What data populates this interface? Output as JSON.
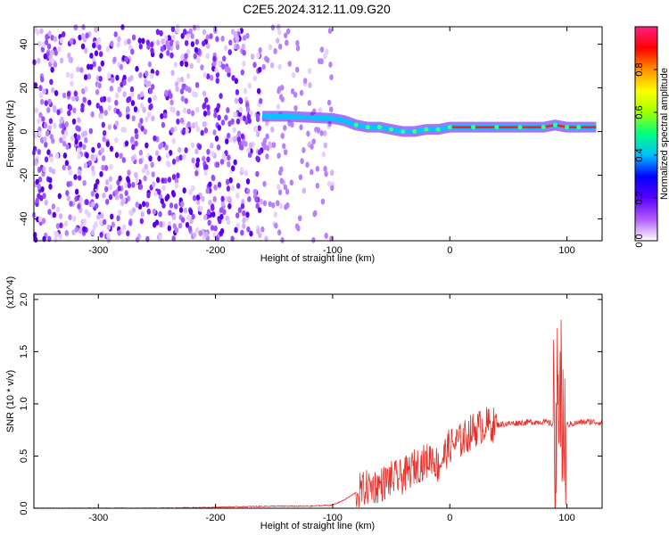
{
  "figure": {
    "title": "C2E5.2024.312.11.09.G20"
  },
  "chart_data": [
    {
      "type": "heatmap",
      "title": "C2E5.2024.312.11.09.G20",
      "xlabel": "Height of straight line (km)",
      "ylabel": "Frequency (Hz)",
      "xlim": [
        -355,
        130
      ],
      "ylim": [
        -50,
        48
      ],
      "x_ticks": [
        -300,
        -200,
        -100,
        0,
        100
      ],
      "y_ticks": [
        -40,
        -20,
        0,
        20,
        40
      ],
      "colorbar": {
        "label": "Normalized spectral amplitude",
        "range": [
          0,
          1
        ],
        "ticks": [
          0.0,
          0.2,
          0.4,
          0.6,
          0.8
        ],
        "tick_labels": [
          "0.0",
          "0.2",
          "0.4",
          "0.6",
          "0.8"
        ],
        "colors": [
          "#ffffff",
          "#b15cff",
          "#5a00ff",
          "#0000ff",
          "#00bfff",
          "#00ff80",
          "#a0ff00",
          "#ffff00",
          "#ff9000",
          "#ff0000",
          "#ff2080"
        ]
      },
      "signal_trace": {
        "x": [
          -160,
          -140,
          -120,
          -100,
          -90,
          -80,
          -70,
          -60,
          -50,
          -40,
          -30,
          -20,
          -10,
          0,
          20,
          40,
          60,
          80,
          90,
          100,
          110,
          125
        ],
        "frequency": [
          7,
          7,
          6.5,
          6,
          5,
          3,
          2,
          2,
          1,
          0,
          0,
          1,
          1,
          2,
          2,
          2,
          2,
          2,
          3,
          2,
          2,
          2
        ]
      }
    },
    {
      "type": "line",
      "xlabel": "Height of straight line (km)",
      "ylabel": "SNR (10 * v/v)",
      "y_scale_label": "(x10^4)",
      "xlim": [
        -355,
        130
      ],
      "ylim": [
        0,
        2.05
      ],
      "x_ticks": [
        -300,
        -200,
        -100,
        0,
        100
      ],
      "y_ticks": [
        0.0,
        0.5,
        1.0,
        1.5,
        2.0
      ],
      "y_tick_labels": [
        "0.0",
        "0.5",
        "1.0",
        "1.5",
        "2.0"
      ],
      "line_color": "#e8302a",
      "series": [
        {
          "x": [
            -355,
            -300,
            -250,
            -200,
            -150,
            -120,
            -100,
            -90,
            -80,
            -70,
            -60,
            -50,
            -40,
            -30,
            -20,
            -15,
            -10,
            -5,
            0,
            10,
            20,
            30,
            40,
            60,
            80,
            90,
            95,
            98,
            100,
            110,
            120,
            130
          ],
          "y": [
            0.0,
            0.0,
            0.0,
            0.01,
            0.02,
            0.02,
            0.03,
            0.08,
            0.15,
            0.2,
            0.22,
            0.28,
            0.3,
            0.4,
            0.45,
            0.5,
            0.4,
            0.5,
            0.6,
            0.65,
            0.75,
            0.8,
            0.8,
            0.82,
            0.83,
            0.8,
            1.0,
            0.75,
            0.8,
            0.82,
            0.83,
            0.82
          ]
        }
      ]
    }
  ]
}
